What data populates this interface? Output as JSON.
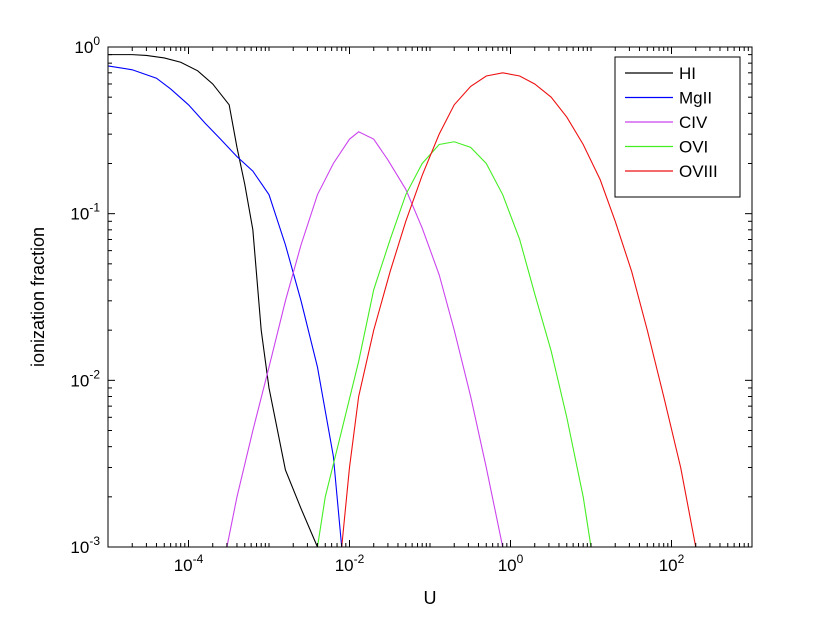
{
  "chart_data": {
    "type": "line",
    "title": "",
    "xlabel": "U",
    "ylabel": "ionization fraction",
    "x_scale": "log",
    "y_scale": "log",
    "xlim": [
      1e-05,
      1000
    ],
    "ylim": [
      0.001,
      1
    ],
    "grid": false,
    "legend_position": "top-right",
    "x_ticks": [
      {
        "value": 0.0001,
        "base": "10",
        "exp": "-4"
      },
      {
        "value": 0.01,
        "base": "10",
        "exp": "-2"
      },
      {
        "value": 1,
        "base": "10",
        "exp": "0"
      },
      {
        "value": 100,
        "base": "10",
        "exp": "2"
      }
    ],
    "y_ticks": [
      {
        "value": 0.001,
        "base": "10",
        "exp": "-3"
      },
      {
        "value": 0.01,
        "base": "10",
        "exp": "-2"
      },
      {
        "value": 0.1,
        "base": "10",
        "exp": "-1"
      },
      {
        "value": 1,
        "base": "10",
        "exp": "0"
      }
    ],
    "series": [
      {
        "name": "HI",
        "color": "#000000",
        "points": [
          [
            1e-05,
            0.9
          ],
          [
            2e-05,
            0.9
          ],
          [
            3e-05,
            0.89
          ],
          [
            5e-05,
            0.86
          ],
          [
            8e-05,
            0.81
          ],
          [
            0.00013,
            0.72
          ],
          [
            0.0002,
            0.6
          ],
          [
            0.00032,
            0.45
          ],
          [
            0.0004,
            0.25
          ],
          [
            0.0005,
            0.15
          ],
          [
            0.00063,
            0.08
          ],
          [
            0.0008,
            0.02
          ],
          [
            0.001,
            0.009
          ],
          [
            0.0016,
            0.0029
          ],
          [
            0.0025,
            0.0017
          ],
          [
            0.004,
            0.001
          ]
        ]
      },
      {
        "name": "MgII",
        "color": "#0000ff",
        "points": [
          [
            1e-05,
            0.77
          ],
          [
            2e-05,
            0.73
          ],
          [
            4e-05,
            0.65
          ],
          [
            6e-05,
            0.56
          ],
          [
            0.0001,
            0.45
          ],
          [
            0.00016,
            0.35
          ],
          [
            0.00025,
            0.28
          ],
          [
            0.0004,
            0.22
          ],
          [
            0.00063,
            0.18
          ],
          [
            0.001,
            0.13
          ],
          [
            0.0016,
            0.065
          ],
          [
            0.0025,
            0.03
          ],
          [
            0.004,
            0.012
          ],
          [
            0.0063,
            0.0035
          ],
          [
            0.008,
            0.001
          ]
        ]
      },
      {
        "name": "CIV",
        "color": "#cc44ee",
        "points": [
          [
            0.0003,
            0.001
          ],
          [
            0.0004,
            0.002
          ],
          [
            0.00063,
            0.005
          ],
          [
            0.001,
            0.012
          ],
          [
            0.0016,
            0.03
          ],
          [
            0.0025,
            0.065
          ],
          [
            0.004,
            0.13
          ],
          [
            0.0063,
            0.2
          ],
          [
            0.01,
            0.28
          ],
          [
            0.013,
            0.31
          ],
          [
            0.02,
            0.28
          ],
          [
            0.03,
            0.21
          ],
          [
            0.05,
            0.14
          ],
          [
            0.08,
            0.082
          ],
          [
            0.13,
            0.043
          ],
          [
            0.2,
            0.02
          ],
          [
            0.32,
            0.008
          ],
          [
            0.5,
            0.003
          ],
          [
            0.8,
            0.001
          ]
        ]
      },
      {
        "name": "OVI",
        "color": "#44ee22",
        "points": [
          [
            0.004,
            0.001
          ],
          [
            0.005,
            0.002
          ],
          [
            0.008,
            0.005
          ],
          [
            0.013,
            0.013
          ],
          [
            0.02,
            0.035
          ],
          [
            0.032,
            0.07
          ],
          [
            0.05,
            0.13
          ],
          [
            0.08,
            0.2
          ],
          [
            0.13,
            0.26
          ],
          [
            0.2,
            0.27
          ],
          [
            0.32,
            0.25
          ],
          [
            0.5,
            0.2
          ],
          [
            0.8,
            0.13
          ],
          [
            1.3,
            0.07
          ],
          [
            2,
            0.033
          ],
          [
            3.2,
            0.015
          ],
          [
            5,
            0.006
          ],
          [
            8,
            0.002
          ],
          [
            10,
            0.001
          ]
        ]
      },
      {
        "name": "OVIII",
        "color": "#ee1111",
        "points": [
          [
            0.008,
            0.001
          ],
          [
            0.01,
            0.003
          ],
          [
            0.013,
            0.008
          ],
          [
            0.02,
            0.02
          ],
          [
            0.032,
            0.045
          ],
          [
            0.05,
            0.09
          ],
          [
            0.08,
            0.17
          ],
          [
            0.13,
            0.3
          ],
          [
            0.2,
            0.45
          ],
          [
            0.32,
            0.58
          ],
          [
            0.5,
            0.67
          ],
          [
            0.8,
            0.7
          ],
          [
            1.3,
            0.67
          ],
          [
            2,
            0.6
          ],
          [
            3.2,
            0.5
          ],
          [
            5,
            0.38
          ],
          [
            8,
            0.26
          ],
          [
            13,
            0.16
          ],
          [
            20,
            0.09
          ],
          [
            32,
            0.045
          ],
          [
            50,
            0.02
          ],
          [
            80,
            0.008
          ],
          [
            130,
            0.003
          ],
          [
            200,
            0.001
          ]
        ]
      }
    ]
  }
}
